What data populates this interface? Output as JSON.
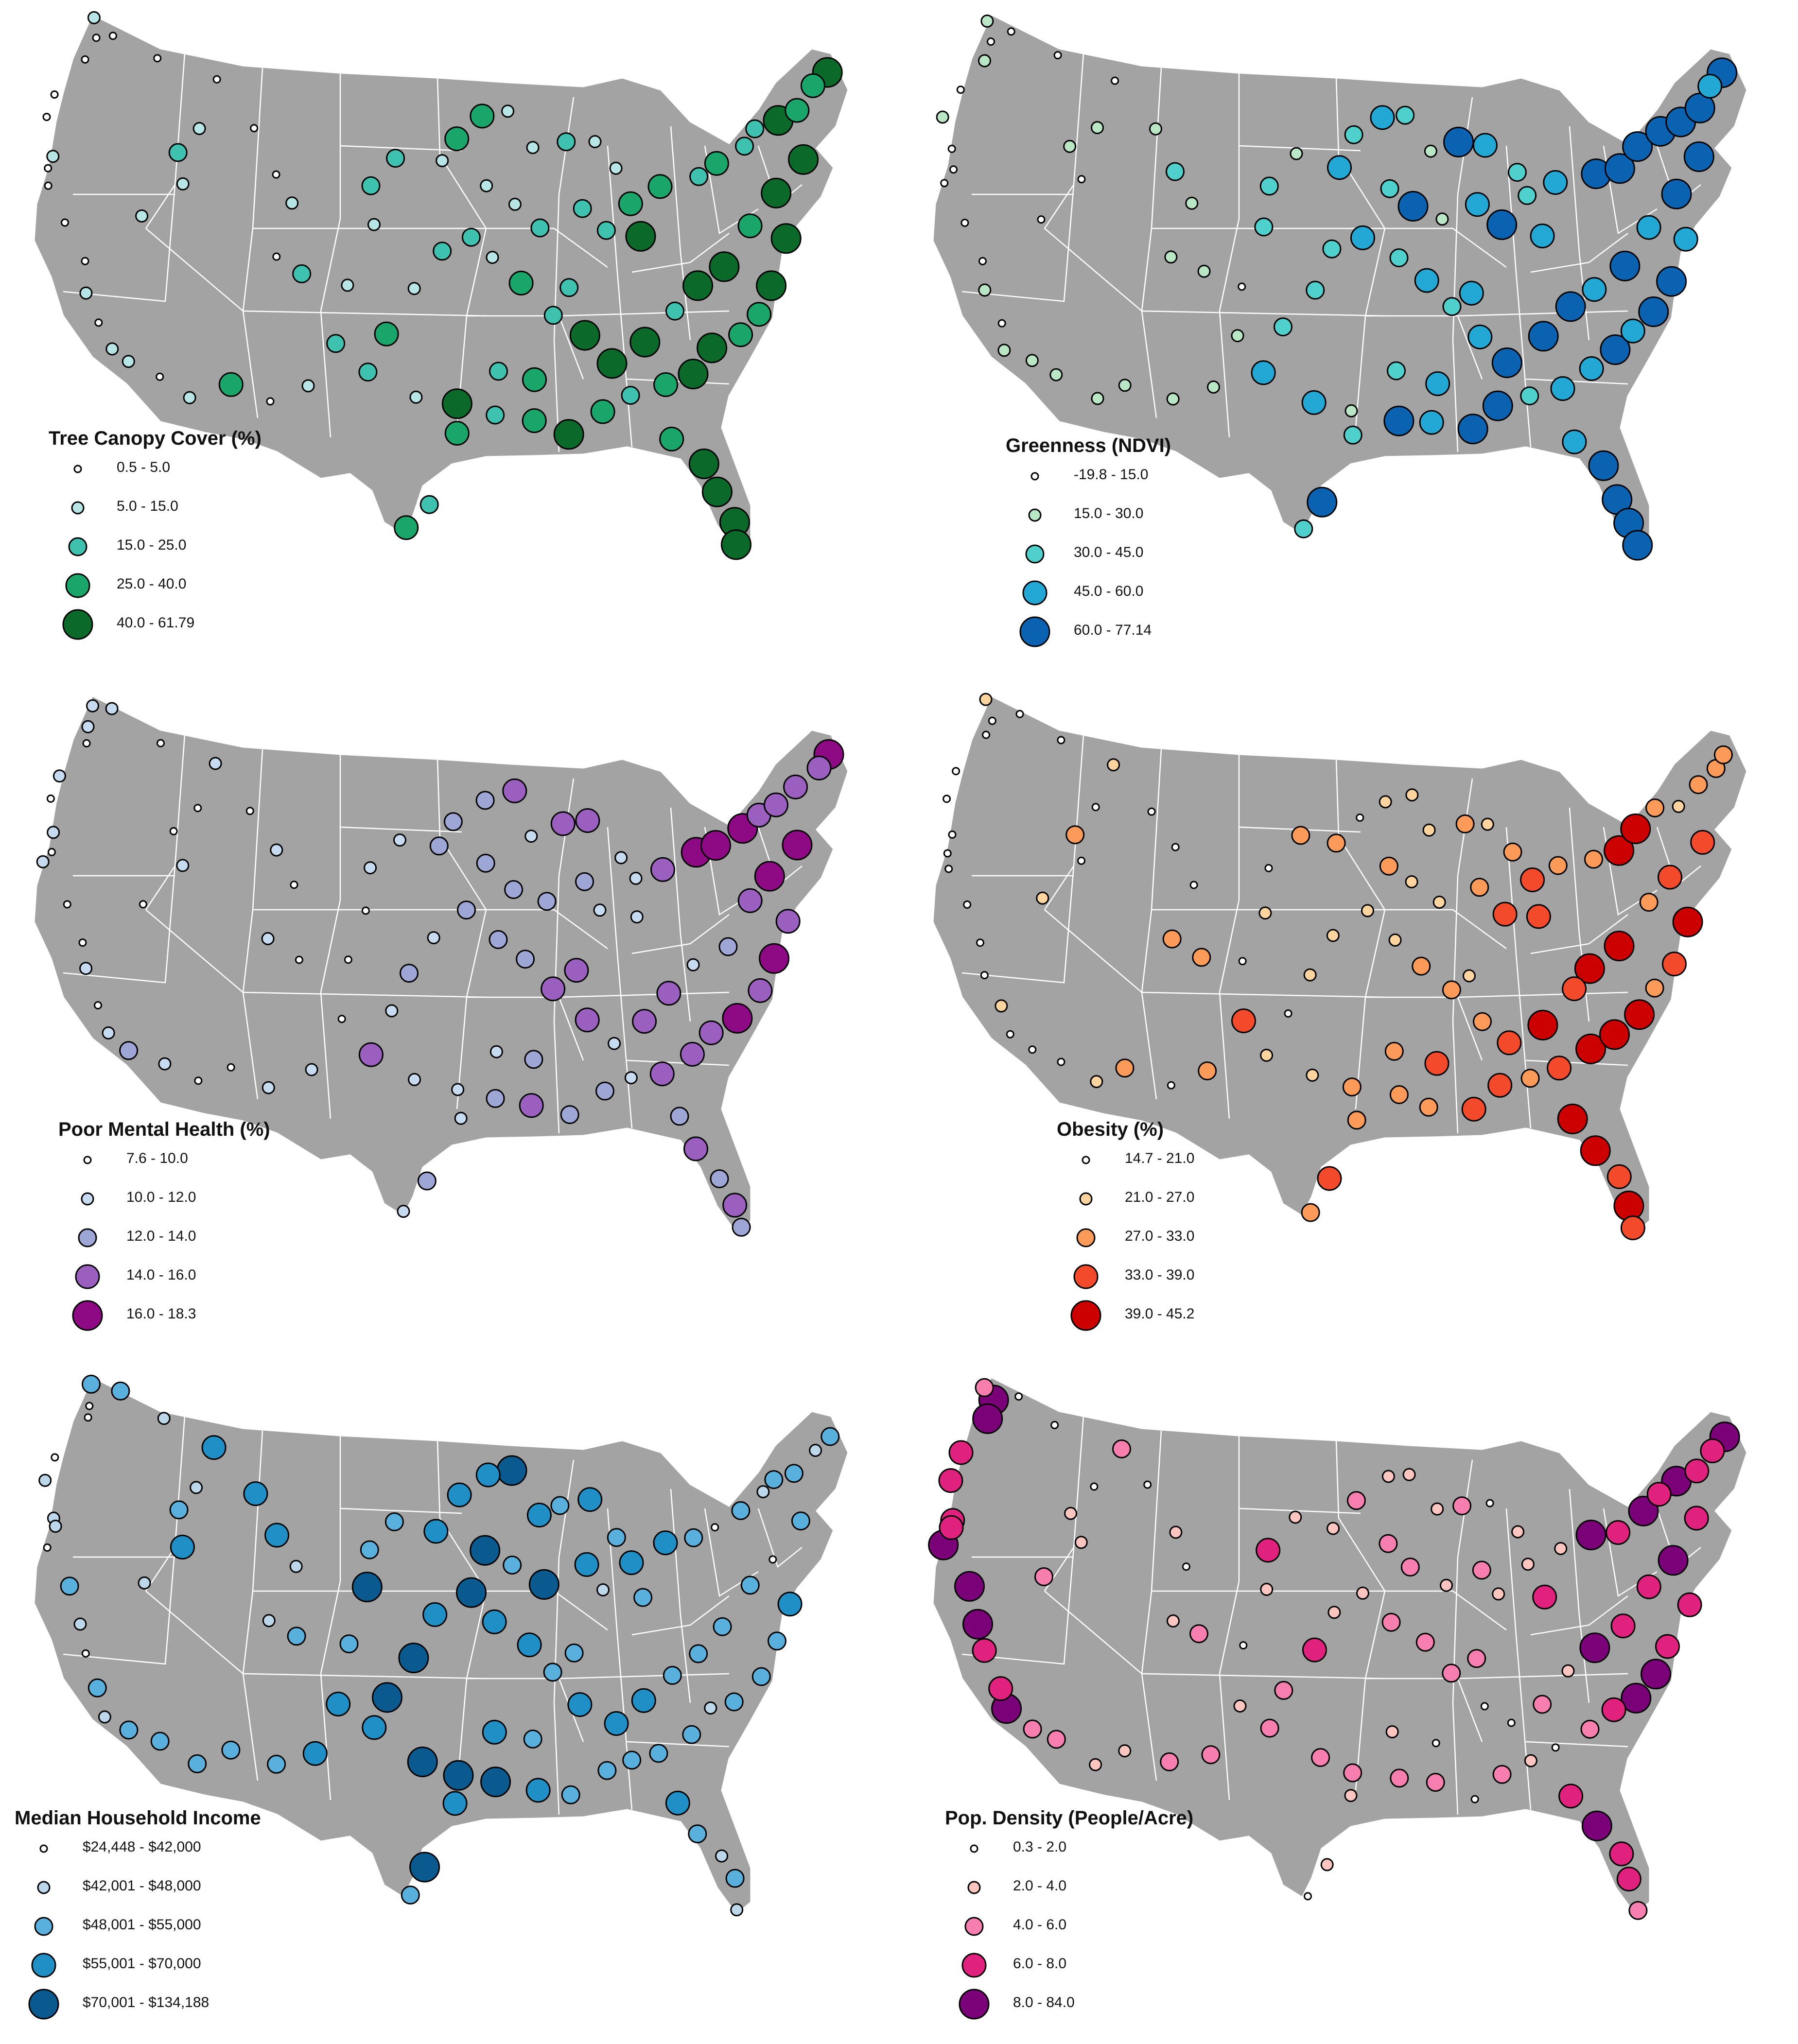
{
  "map_style": {
    "land": "#a3a3a3",
    "borders": "#ffffff",
    "marker_stroke": "#000000"
  },
  "panels": [
    {
      "id": "tree-canopy",
      "title": "Tree Canopy Cover (%)",
      "classes": [
        {
          "label": "0.5 - 5.0",
          "color": "#ffffff"
        },
        {
          "label": "5.0 - 15.0",
          "color": "#b7e4e4"
        },
        {
          "label": "15.0 - 25.0",
          "color": "#3fc1b0"
        },
        {
          "label": "25.0 - 40.0",
          "color": "#1aa66a"
        },
        {
          "label": "40.0 - 61.79",
          "color": "#0b6a2a"
        }
      ]
    },
    {
      "id": "greenness",
      "title": "Greenness (NDVI)",
      "classes": [
        {
          "label": "-19.8 - 15.0",
          "color": "#ffffff"
        },
        {
          "label": "15.0 - 30.0",
          "color": "#b9e6c4"
        },
        {
          "label": "30.0 - 45.0",
          "color": "#4fd0cc"
        },
        {
          "label": "45.0 - 60.0",
          "color": "#23a8d6"
        },
        {
          "label": "60.0 - 77.14",
          "color": "#0b62b0"
        }
      ]
    },
    {
      "id": "mental-health",
      "title": "Poor Mental Health (%)",
      "classes": [
        {
          "label": "7.6 - 10.0",
          "color": "#ffffff"
        },
        {
          "label": "10.0 - 12.0",
          "color": "#c6dbef"
        },
        {
          "label": "12.0 - 14.0",
          "color": "#9ea6d6"
        },
        {
          "label": "14.0 - 16.0",
          "color": "#9a5fbf"
        },
        {
          "label": "16.0 - 18.3",
          "color": "#8e0a84"
        }
      ]
    },
    {
      "id": "obesity",
      "title": "Obesity (%)",
      "classes": [
        {
          "label": "14.7 - 21.0",
          "color": "#ffffff"
        },
        {
          "label": "21.0 - 27.0",
          "color": "#fdd49e"
        },
        {
          "label": "27.0 - 33.0",
          "color": "#fc9a5a"
        },
        {
          "label": "33.0 - 39.0",
          "color": "#f24a2a"
        },
        {
          "label": "39.0 - 45.2",
          "color": "#cc0000"
        }
      ]
    },
    {
      "id": "income",
      "title": "Median Household Income",
      "classes": [
        {
          "label": "$24,448 - $42,000",
          "color": "#ffffff"
        },
        {
          "label": "$42,001 - $48,000",
          "color": "#bcd7ea"
        },
        {
          "label": "$48,001 - $55,000",
          "color": "#5ab0dc"
        },
        {
          "label": "$55,001 - $70,000",
          "color": "#1f8fc6"
        },
        {
          "label": "$70,001 - $134,188",
          "color": "#0b5a8f"
        }
      ]
    },
    {
      "id": "pop-density",
      "title": "Pop. Density (People/Acre)",
      "classes": [
        {
          "label": "0.3 - 2.0",
          "color": "#ffffff"
        },
        {
          "label": "2.0 - 4.0",
          "color": "#fcc5c0"
        },
        {
          "label": "4.0 - 6.0",
          "color": "#f77fb0"
        },
        {
          "label": "6.0 - 8.0",
          "color": "#e0217d"
        },
        {
          "label": "8.0 - 84.0",
          "color": "#7a0177"
        }
      ]
    }
  ]
}
